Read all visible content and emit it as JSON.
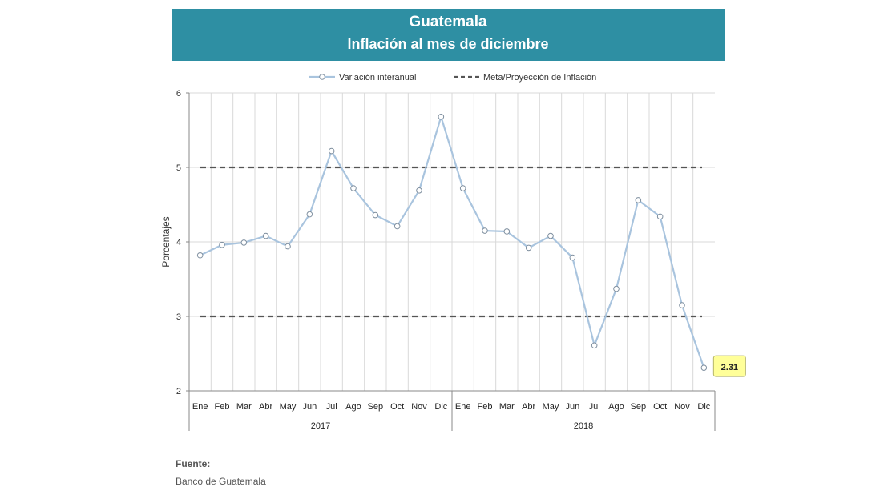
{
  "header": {
    "title": "Guatemala",
    "subtitle": "Inflación al mes de diciembre"
  },
  "source": {
    "label": "Fuente:",
    "value": "Banco de Guatemala"
  },
  "chart_data": {
    "type": "line",
    "title": "Guatemala",
    "subtitle": "Inflación al mes de diciembre",
    "ylabel": "Porcentajes",
    "xlabel": "",
    "ylim": [
      2,
      6
    ],
    "yticks": [
      2,
      3,
      4,
      5,
      6
    ],
    "grid": true,
    "legend_position": "top",
    "categories": [
      "Ene",
      "Feb",
      "Mar",
      "Abr",
      "May",
      "Jun",
      "Jul",
      "Ago",
      "Sep",
      "Oct",
      "Nov",
      "Dic",
      "Ene",
      "Feb",
      "Mar",
      "Abr",
      "May",
      "Jun",
      "Jul",
      "Ago",
      "Sep",
      "Oct",
      "Nov",
      "Dic"
    ],
    "groups": [
      {
        "label": "2017",
        "start": 0,
        "end": 11
      },
      {
        "label": "2018",
        "start": 12,
        "end": 23
      }
    ],
    "series": [
      {
        "name": "Variación interanual",
        "color": "#a9c4de",
        "style": "line-with-markers",
        "values": [
          3.82,
          3.96,
          3.99,
          4.08,
          3.94,
          4.37,
          5.22,
          4.72,
          4.36,
          4.21,
          4.69,
          5.68,
          4.72,
          4.15,
          4.14,
          3.92,
          4.08,
          3.79,
          2.61,
          3.37,
          4.56,
          4.34,
          3.15,
          2.31
        ]
      }
    ],
    "reference_lines": [
      {
        "name": "Meta/Proyección de Inflación",
        "color": "#555555",
        "style": "dashed",
        "values": [
          3,
          5
        ]
      }
    ],
    "annotations": [
      {
        "text": "2.31",
        "index": 23,
        "background": "#ffff99"
      }
    ]
  }
}
